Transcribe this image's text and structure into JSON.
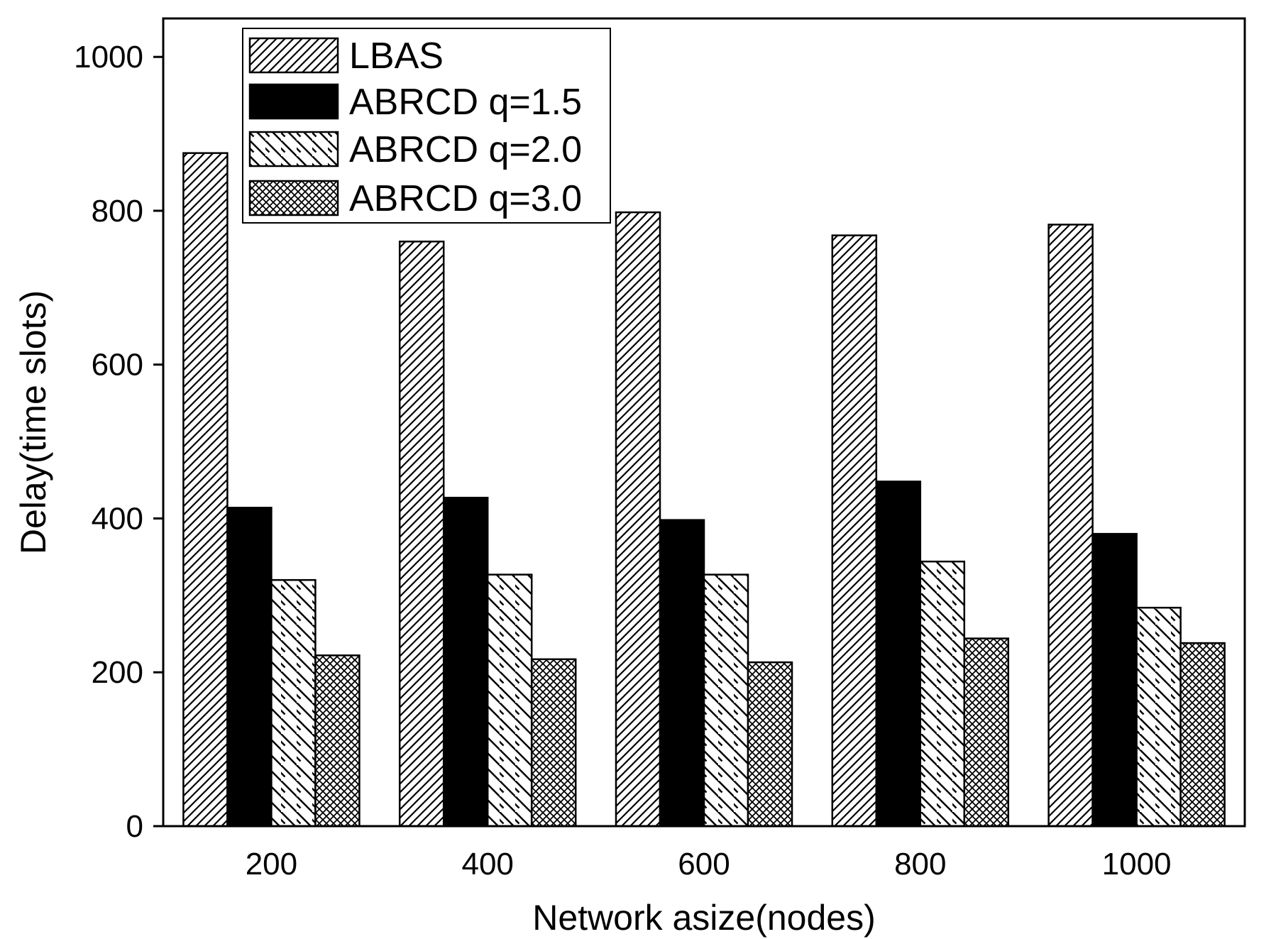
{
  "chart_data": {
    "type": "bar",
    "title": "",
    "xlabel": "Network asize(nodes)",
    "ylabel": "Delay(time slots)",
    "ylim": [
      0,
      1050
    ],
    "yticks": [
      0,
      200,
      400,
      600,
      800,
      1000
    ],
    "ytick_labels": [
      "0",
      "200",
      "400",
      "600",
      "800",
      "1000"
    ],
    "categories": [
      "200",
      "400",
      "600",
      "800",
      "1000"
    ],
    "grid": false,
    "legend_position": "top-left",
    "series": [
      {
        "name": "LBAS",
        "pattern": "diag-up",
        "values": [
          875,
          760,
          798,
          768,
          782
        ]
      },
      {
        "name": "ABRCD q=1.5",
        "pattern": "solid",
        "values": [
          414,
          427,
          398,
          448,
          380
        ]
      },
      {
        "name": "ABRCD q=2.0",
        "pattern": "diag-down",
        "values": [
          320,
          327,
          327,
          344,
          284
        ]
      },
      {
        "name": "ABRCD q=3.0",
        "pattern": "crosshatch",
        "values": [
          222,
          217,
          213,
          244,
          238
        ]
      }
    ],
    "colors": {
      "fill_solid": "#000000",
      "stroke": "#000000",
      "background": "#ffffff"
    }
  }
}
